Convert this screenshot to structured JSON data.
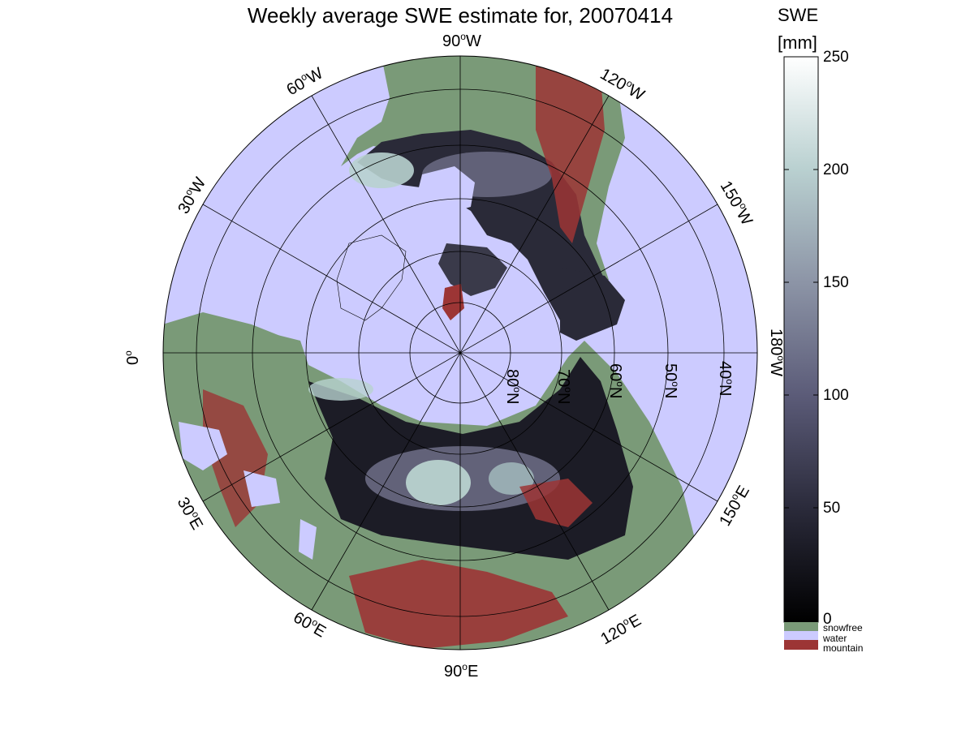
{
  "title": "Weekly average SWE estimate for, 20070414",
  "colorbar": {
    "title_line1": "SWE",
    "title_line2": "[mm]",
    "ticks": [
      "250",
      "200",
      "150",
      "100",
      "50",
      "0"
    ],
    "tick_values": [
      250,
      200,
      150,
      100,
      50,
      0
    ],
    "range": [
      0,
      250
    ],
    "gradient_colors": [
      "#000000",
      "#2a2a3a",
      "#5b5b78",
      "#8c94a6",
      "#b9d0d0",
      "#ffffff"
    ]
  },
  "legend": {
    "items": [
      {
        "label": "snowfree",
        "color": "#7a9a78"
      },
      {
        "label": "water",
        "color": "#cccbff"
      },
      {
        "label": "mountain",
        "color": "#9c3535"
      }
    ]
  },
  "map": {
    "projection": "north-polar stereographic",
    "lon_labels": [
      {
        "deg": "90",
        "hemi": "W"
      },
      {
        "deg": "120",
        "hemi": "W"
      },
      {
        "deg": "150",
        "hemi": "W"
      },
      {
        "deg": "180",
        "hemi": "W"
      },
      {
        "deg": "150",
        "hemi": "E"
      },
      {
        "deg": "120",
        "hemi": "E"
      },
      {
        "deg": "90",
        "hemi": "E"
      },
      {
        "deg": "60",
        "hemi": "E"
      },
      {
        "deg": "30",
        "hemi": "E"
      },
      {
        "deg": "0",
        "hemi": ""
      },
      {
        "deg": "30",
        "hemi": "W"
      },
      {
        "deg": "60",
        "hemi": "W"
      }
    ],
    "lat_labels": [
      {
        "deg": "80",
        "hemi": "N"
      },
      {
        "deg": "70",
        "hemi": "N"
      },
      {
        "deg": "60",
        "hemi": "N"
      },
      {
        "deg": "50",
        "hemi": "N"
      },
      {
        "deg": "40",
        "hemi": "N"
      }
    ],
    "colors": {
      "water": "#cccbff",
      "snowfree": "#7a9a78",
      "mountain": "#9c3535",
      "snow_dark": "#15151c",
      "snow_mid": "#5a5a72",
      "snow_light": "#b8d2cf"
    }
  }
}
